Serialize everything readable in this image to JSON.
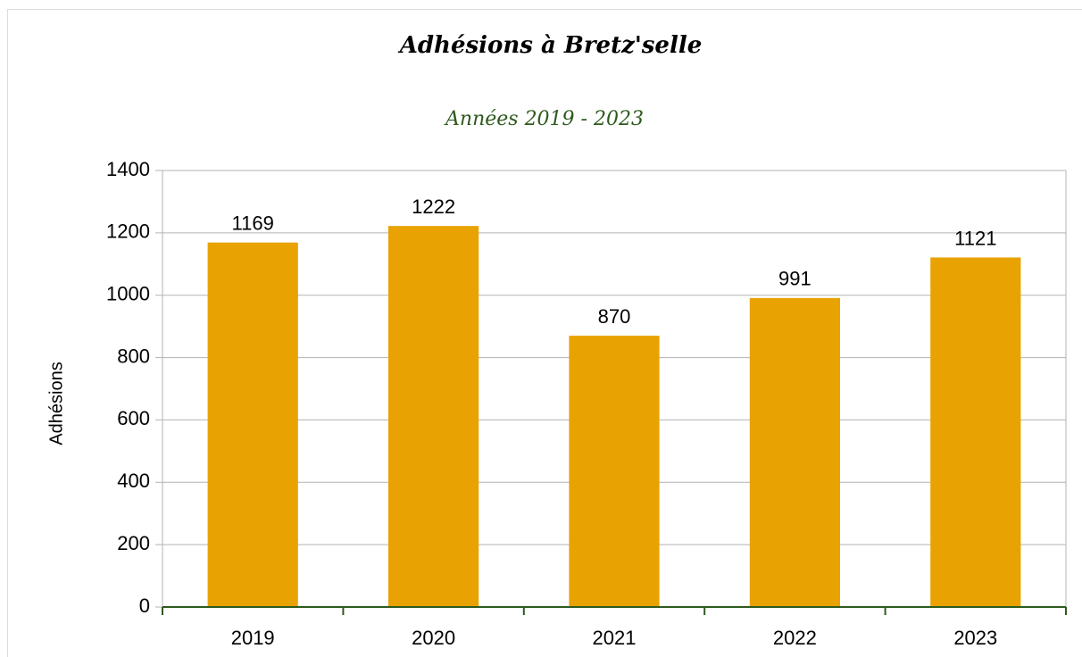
{
  "chart_data": {
    "type": "bar",
    "title": "Adhésions à Bretz'selle",
    "subtitle": "Années 2019 - 2023",
    "y_label": "Adhésions",
    "categories": [
      "2019",
      "2020",
      "2021",
      "2022",
      "2023"
    ],
    "values": [
      1169,
      1222,
      870,
      991,
      1121
    ],
    "color": "#e8a202",
    "ylim": [
      0,
      1400
    ],
    "yticks": [
      0,
      200,
      400,
      600,
      800,
      1000,
      1200,
      1400
    ],
    "grid": true
  }
}
